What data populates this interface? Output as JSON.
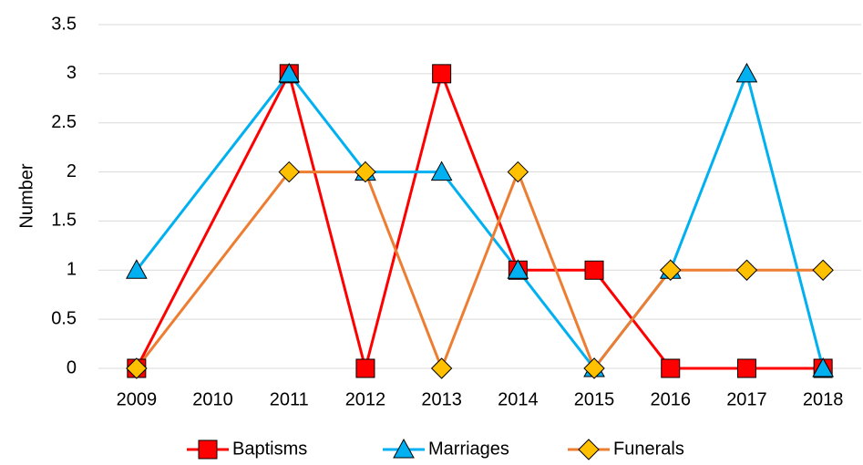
{
  "chart_data": {
    "type": "line",
    "y_label": "Number",
    "x": [
      2009,
      2011,
      2012,
      2013,
      2014,
      2015,
      2016,
      2017,
      2018
    ],
    "xlim": [
      2008.5,
      2018.5
    ],
    "xticks": [
      2009,
      2010,
      2011,
      2012,
      2013,
      2014,
      2015,
      2016,
      2017,
      2018
    ],
    "ylim": [
      0,
      3.5
    ],
    "yticks": [
      0,
      0.5,
      1,
      1.5,
      2,
      2.5,
      3,
      3.5
    ],
    "grid": true,
    "legend": "bottom",
    "series": [
      {
        "name": "Baptisms",
        "color": "#ff0000",
        "marker": "square",
        "marker_color": "#ff0000",
        "values": [
          0,
          3,
          0,
          3,
          1,
          1,
          0,
          0,
          0
        ]
      },
      {
        "name": "Marriages",
        "color": "#00b0f0",
        "marker": "triangle",
        "marker_color": "#00b0f0",
        "values": [
          1,
          3,
          2,
          2,
          1,
          0,
          1,
          3,
          0
        ]
      },
      {
        "name": "Funerals",
        "color": "#ed7d31",
        "marker": "diamond",
        "marker_color": "#ffc000",
        "values": [
          0,
          2,
          2,
          0,
          2,
          0,
          1,
          1,
          1
        ]
      }
    ]
  }
}
